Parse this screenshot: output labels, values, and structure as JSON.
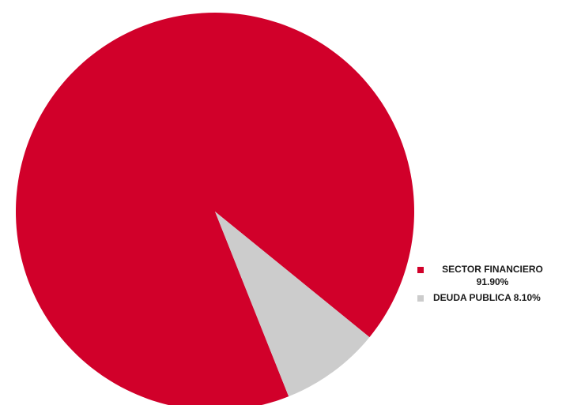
{
  "colors": {
    "sector_financiero": "#d1002a",
    "deuda_publica": "#cccccc"
  },
  "chart_data": {
    "type": "pie",
    "title": "",
    "slices": [
      {
        "label": "SECTOR FINANCIERO",
        "value": 91.9,
        "color": "#d1002a"
      },
      {
        "label": "DEUDA PUBLICA",
        "value": 8.1,
        "color": "#cccccc"
      }
    ],
    "legend": {
      "placement": "right",
      "items": [
        {
          "line1": "SECTOR FINANCIERO",
          "line2": "91.90%"
        },
        {
          "line1": "DEUDA PUBLICA 8.10%"
        }
      ]
    }
  }
}
